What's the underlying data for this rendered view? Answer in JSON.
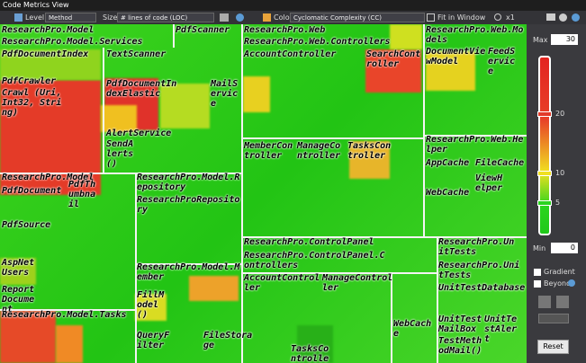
{
  "window": {
    "title": "Code Metrics View"
  },
  "toolbar": {
    "level_label": "Level",
    "level_value": "Method",
    "size_label": "Size",
    "size_value": "# lines of code (LOC)",
    "color_label": "Color",
    "color_value": "Cyclomatic Complexity (CC)",
    "fit": "Fit in Window",
    "zoom": "x1"
  },
  "legend": {
    "max_label": "Max",
    "max_value": "30",
    "ticks": [
      "20",
      "10",
      "5"
    ],
    "min_label": "Min",
    "min_value": "0",
    "gradient": "Gradient",
    "beyond": "Beyond",
    "reset": "Reset"
  },
  "treemap": {
    "labels": [
      "ResearchPro.Model",
      "ResearchPro.Model.Services",
      "PdfDocumentIndex",
      "TextScanner",
      "PdfScanner",
      "PdfCrawler",
      "Crawl (Uri,Int32, String)",
      "PdfDocumentIndexElastic",
      "MailService",
      "AlertService",
      "SendAlerts()",
      "ResearchPro.Model",
      "PdfDocument",
      "PdfThumbnail",
      "PdfSource",
      "AspNetUsers",
      "ReportDocument",
      "ResearchPro.Model.Repository",
      "ResearchProRepository",
      "ResearchPro.Model.Member",
      "FillModel()",
      "ResearchPro.Model.Tasks",
      "QueryFilter",
      "FileStorage",
      "ResearchPro.Web",
      "ResearchPro.Web.Controllers",
      "AccountController",
      "SearchController",
      "MemberController",
      "ManageController",
      "TasksController",
      "ResearchPro.Web.Models",
      "DocumentViewModel",
      "FeedService",
      "ResearchPro.Web.Helper",
      "AppCache",
      "FileCache",
      "WebCache",
      "ViewHelper",
      "ResearchPro.ControlPanel",
      "ResearchPro.ControlPanel.Controllers",
      "AccountController",
      "ManageController",
      "WebCache",
      "TasksController",
      "ResearchPro.UnitTests",
      "ResearchPro.UnitTests",
      "UnitTestDatabase",
      "UnitTestMailBox",
      "UnitTestAlert",
      "TestMethodMail()"
    ]
  }
}
